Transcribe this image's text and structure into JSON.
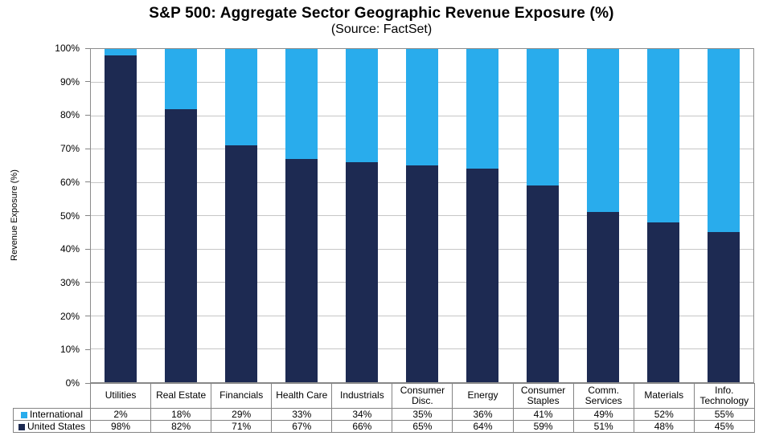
{
  "title": "S&P 500: Aggregate Sector Geographic Revenue Exposure (%)",
  "subtitle": "(Source: FactSet)",
  "chart_data": {
    "type": "bar",
    "stacked": true,
    "title": "S&P 500: Aggregate Sector Geographic Revenue Exposure (%)",
    "subtitle": "(Source: FactSet)",
    "xlabel": "",
    "ylabel": "Revenue Exposure (%)",
    "ylim": [
      0,
      100
    ],
    "ytick_step": 10,
    "ytick_suffix": "%",
    "grid": true,
    "legend_position": "table-left",
    "value_suffix": "%",
    "categories": [
      "Utilities",
      "Real Estate",
      "Financials",
      "Health Care",
      "Industrials",
      "Consumer Disc.",
      "Energy",
      "Consumer Staples",
      "Comm. Services",
      "Materials",
      "Info. Technology"
    ],
    "series": [
      {
        "name": "International",
        "color": "#29ACEC",
        "values": [
          2,
          18,
          29,
          33,
          34,
          35,
          36,
          41,
          49,
          52,
          55
        ]
      },
      {
        "name": "United States",
        "color": "#1D2A52",
        "values": [
          98,
          82,
          71,
          67,
          66,
          65,
          64,
          59,
          51,
          48,
          45
        ]
      }
    ],
    "colors": {
      "international": "#29ACEC",
      "united_states": "#1D2A52",
      "gridline": "#C6C6C6",
      "border": "#848484"
    }
  }
}
